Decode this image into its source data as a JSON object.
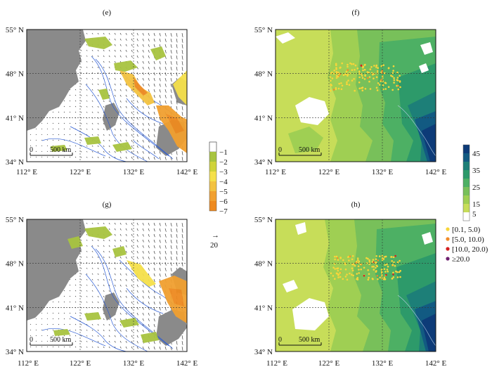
{
  "panels": [
    {
      "id": "e",
      "label": "(e)",
      "type": "wind"
    },
    {
      "id": "f",
      "label": "(f)",
      "type": "depth"
    },
    {
      "id": "g",
      "label": "(g)",
      "type": "wind"
    },
    {
      "id": "h",
      "label": "(h)",
      "type": "depth"
    }
  ],
  "axes": {
    "y_ticks": [
      "55° N",
      "48° N",
      "41° N",
      "34° N"
    ],
    "x_ticks": [
      "112° E",
      "122° E",
      "132° E",
      "142° E"
    ],
    "lat_range": [
      34,
      55
    ],
    "lon_range": [
      112,
      142
    ]
  },
  "scalebar_label": "500 km",
  "scalebar_zero": "0",
  "colorbar_left": {
    "ticks": [
      "−1",
      "−2",
      "−3",
      "−4",
      "−5",
      "−6",
      "−7"
    ],
    "colors": [
      "#ffffff",
      "#a8c440",
      "#cfd33a",
      "#f5e04a",
      "#f3c240",
      "#f1a030",
      "#ee8a1f"
    ]
  },
  "vector_ref": {
    "arrow": "→",
    "value": "20"
  },
  "colorbar_right": {
    "ticks": [
      "45",
      "35",
      "25",
      "15",
      "5"
    ],
    "colors": [
      "#ffffff",
      "#c7dd59",
      "#9fcf53",
      "#78c05a",
      "#4db064",
      "#2d9a6a",
      "#1d7f78",
      "#125a82",
      "#0d3b78"
    ]
  },
  "legend": {
    "items": [
      {
        "label": "[0.1, 5.0)",
        "color": "#f8d53a"
      },
      {
        "label": "[5.0, 10.0)",
        "color": "#f08c2a"
      },
      {
        "label": "[10.0, 20.0)",
        "color": "#d42020"
      },
      {
        "label": "≥20.0",
        "color": "#6e1f6e"
      }
    ]
  }
}
